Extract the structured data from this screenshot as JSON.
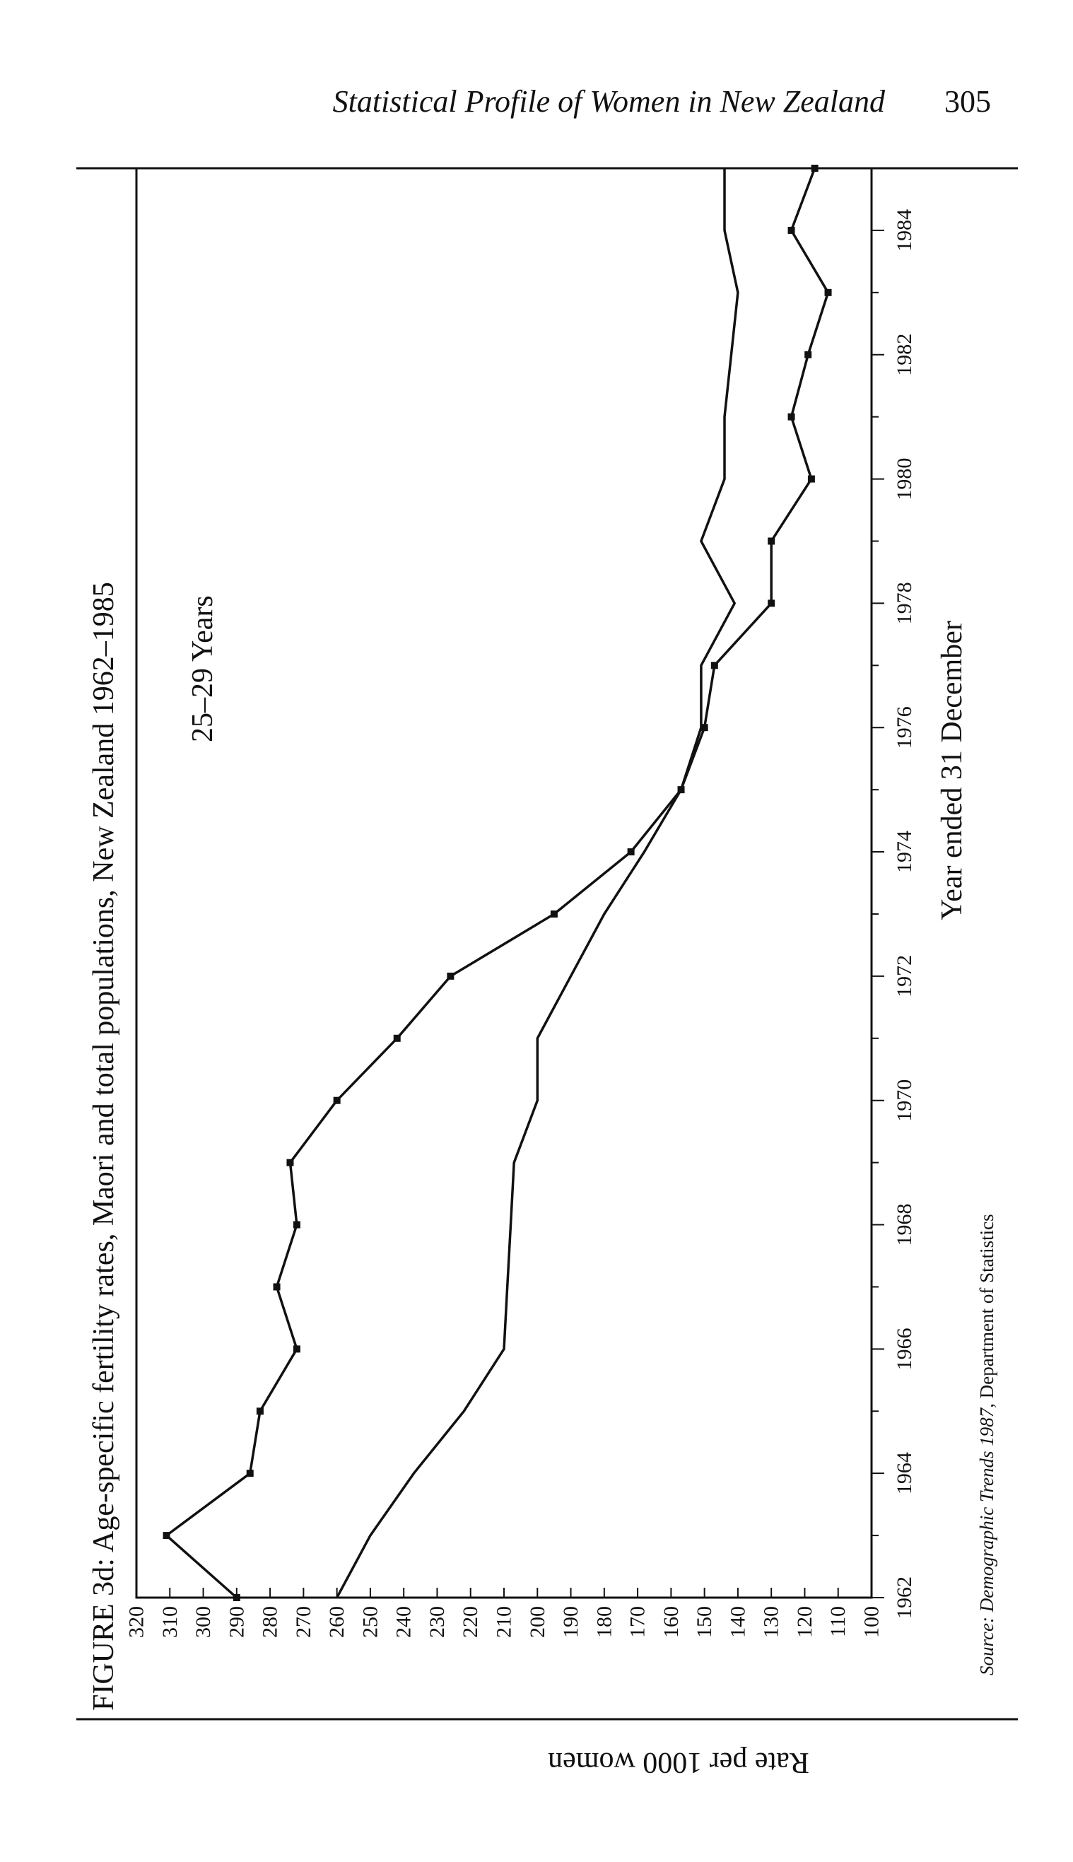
{
  "page": {
    "running_title": "Statistical Profile of Women in New Zealand",
    "page_number": "305"
  },
  "figure": {
    "caption": "FIGURE 3d: Age-specific fertility rates, Maori and total populations, New Zealand 1962–1985",
    "panel_label": "25–29 Years",
    "source_label": "Source: ",
    "source_title": "Demographic Trends 1987",
    "source_rest": ", Department of Statistics"
  },
  "chart_data": {
    "type": "line",
    "xlabel": "Year ended 31 December",
    "ylabel": "Rate per 1000 women",
    "xlim": [
      1962,
      1985
    ],
    "ylim": [
      100,
      320
    ],
    "x_ticks": [
      1962,
      1963,
      1964,
      1965,
      1966,
      1967,
      1968,
      1969,
      1970,
      1971,
      1972,
      1973,
      1974,
      1975,
      1976,
      1977,
      1978,
      1979,
      1980,
      1981,
      1982,
      1983,
      1984,
      1985
    ],
    "x_tick_labels": [
      "1962",
      "1964",
      "1966",
      "1968",
      "1970",
      "1972",
      "1974",
      "1976",
      "1978",
      "1980",
      "1982",
      "1984"
    ],
    "y_ticks": [
      100,
      110,
      120,
      130,
      140,
      150,
      160,
      170,
      180,
      190,
      200,
      210,
      220,
      230,
      240,
      250,
      260,
      270,
      280,
      290,
      300,
      310,
      320
    ],
    "orientation": "rotated 90° counter-clockwise on the page",
    "x": [
      1962,
      1963,
      1964,
      1965,
      1966,
      1967,
      1968,
      1969,
      1970,
      1971,
      1972,
      1973,
      1974,
      1975,
      1976,
      1977,
      1978,
      1979,
      1980,
      1981,
      1982,
      1983,
      1984,
      1985
    ],
    "series": [
      {
        "marker": "square",
        "values": [
          290,
          311,
          286,
          283,
          272,
          278,
          272,
          274,
          260,
          242,
          226,
          195,
          172,
          157,
          150,
          147,
          130,
          130,
          118,
          124,
          119,
          113,
          124,
          117
        ]
      },
      {
        "marker": "none",
        "values": [
          260,
          250,
          237,
          222,
          210,
          209,
          208,
          207,
          200,
          200,
          190,
          180,
          168,
          157,
          151,
          151,
          141,
          151,
          144,
          144,
          142,
          140,
          144,
          144
        ]
      }
    ]
  }
}
